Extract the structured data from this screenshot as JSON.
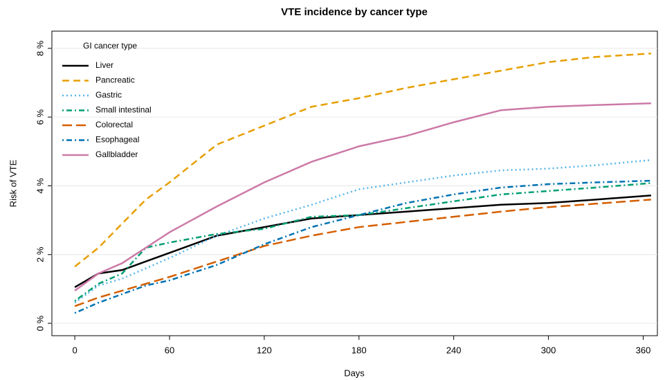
{
  "chart_data": {
    "type": "line",
    "title": "VTE incidence by cancer type",
    "xlabel": "Days",
    "ylabel": "Risk of VTE",
    "legend_title": "GI cancer type",
    "legend": "top-left",
    "grid": true,
    "x": [
      0,
      15,
      30,
      45,
      60,
      90,
      120,
      150,
      180,
      210,
      240,
      270,
      300,
      330,
      365
    ],
    "xlim": [
      -14.5,
      369
    ],
    "xticks": [
      0,
      60,
      120,
      180,
      240,
      300,
      360
    ],
    "ylim": [
      -0.36,
      8.5
    ],
    "yticks": [
      {
        "value": 0,
        "label": "0 %"
      },
      {
        "value": 2,
        "label": "2 %"
      },
      {
        "value": 4,
        "label": "4 %"
      },
      {
        "value": 6,
        "label": "6 %"
      },
      {
        "value": 8,
        "label": "8 %"
      }
    ],
    "series": [
      {
        "name": "Liver",
        "color": "#000000",
        "linestyle": "solid",
        "values": [
          1.05,
          1.45,
          1.55,
          1.8,
          2.05,
          2.55,
          2.8,
          3.05,
          3.15,
          3.25,
          3.35,
          3.45,
          3.5,
          3.6,
          3.72
        ]
      },
      {
        "name": "Pancreatic",
        "color": "#E69F00",
        "linestyle": "dashed",
        "values": [
          1.65,
          2.2,
          2.9,
          3.6,
          4.1,
          5.2,
          5.75,
          6.3,
          6.55,
          6.85,
          7.1,
          7.35,
          7.6,
          7.75,
          7.85
        ]
      },
      {
        "name": "Gastric",
        "color": "#56B4E9",
        "linestyle": "dotted",
        "values": [
          0.6,
          1.1,
          1.3,
          1.6,
          1.9,
          2.55,
          3.05,
          3.45,
          3.9,
          4.1,
          4.3,
          4.45,
          4.5,
          4.6,
          4.75
        ]
      },
      {
        "name": "Small intestinal",
        "color": "#009E73",
        "linestyle": "dotdash",
        "values": [
          0.65,
          1.15,
          1.45,
          2.2,
          2.35,
          2.6,
          2.75,
          3.1,
          3.15,
          3.35,
          3.55,
          3.75,
          3.85,
          3.95,
          4.08
        ]
      },
      {
        "name": "Colorectal",
        "color": "#D55E00",
        "linestyle": "longdash",
        "values": [
          0.5,
          0.75,
          0.95,
          1.15,
          1.35,
          1.8,
          2.25,
          2.55,
          2.8,
          2.95,
          3.1,
          3.25,
          3.38,
          3.48,
          3.6
        ]
      },
      {
        "name": "Esophageal",
        "color": "#0072B2",
        "linestyle": "dotdash",
        "values": [
          0.3,
          0.6,
          0.85,
          1.1,
          1.25,
          1.7,
          2.3,
          2.8,
          3.15,
          3.5,
          3.75,
          3.95,
          4.05,
          4.1,
          4.15
        ]
      },
      {
        "name": "Gallbladder",
        "color": "#CC79A7",
        "linestyle": "solid",
        "values": [
          0.95,
          1.45,
          1.75,
          2.2,
          2.65,
          3.4,
          4.1,
          4.7,
          5.15,
          5.45,
          5.85,
          6.2,
          6.3,
          6.35,
          6.4
        ]
      }
    ]
  }
}
